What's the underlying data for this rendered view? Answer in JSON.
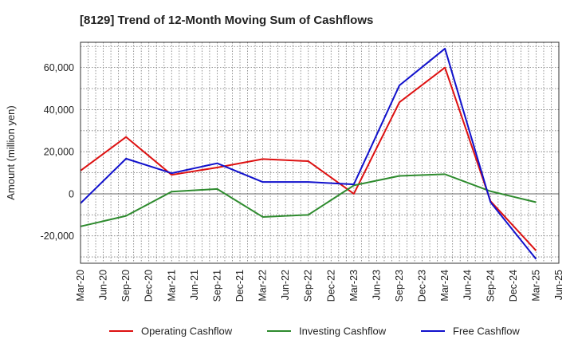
{
  "chart_data": {
    "type": "line",
    "title": "[8129]  Trend of 12-Month Moving Sum of Cashflows",
    "xlabel": "",
    "ylabel": "Amount (million yen)",
    "ylim": [
      -33000,
      72000
    ],
    "yticks": [
      60000,
      40000,
      20000,
      0,
      -20000
    ],
    "ytick_labels": [
      "60,000",
      "40,000",
      "20,000",
      "0",
      "-20,000"
    ],
    "x_tick_labels": [
      "Mar-20",
      "Jun-20",
      "Sep-20",
      "Dec-20",
      "Mar-21",
      "Jun-21",
      "Sep-21",
      "Dec-21",
      "Mar-22",
      "Jun-22",
      "Sep-22",
      "Dec-22",
      "Mar-23",
      "Jun-23",
      "Sep-23",
      "Dec-23",
      "Mar-24",
      "Jun-24",
      "Sep-24",
      "Dec-24",
      "Mar-25",
      "Jun-25"
    ],
    "grid": true,
    "legend_position": "bottom",
    "series": [
      {
        "name": "Operating Cashflow",
        "color": "#dd1111",
        "x": [
          "Mar-20",
          "Sep-20",
          "Mar-21",
          "Sep-21",
          "Mar-22",
          "Sep-22",
          "Mar-23",
          "Sep-23",
          "Mar-24",
          "Sep-24",
          "Mar-25"
        ],
        "values": [
          11000,
          27000,
          9000,
          12500,
          16500,
          15500,
          0,
          43500,
          60000,
          -3500,
          -27000
        ]
      },
      {
        "name": "Investing Cashflow",
        "color": "#2e8b2e",
        "x": [
          "Mar-20",
          "Sep-20",
          "Mar-21",
          "Sep-21",
          "Mar-22",
          "Sep-22",
          "Mar-23",
          "Sep-23",
          "Mar-24",
          "Sep-24",
          "Mar-25"
        ],
        "values": [
          -15500,
          -10500,
          1000,
          2300,
          -11000,
          -10000,
          4000,
          8500,
          9300,
          1200,
          -4000
        ]
      },
      {
        "name": "Free Cashflow",
        "color": "#1111cc",
        "x": [
          "Mar-20",
          "Sep-20",
          "Mar-21",
          "Sep-21",
          "Mar-22",
          "Sep-22",
          "Mar-23",
          "Sep-23",
          "Mar-24",
          "Sep-24",
          "Mar-25"
        ],
        "values": [
          -4500,
          16700,
          9800,
          14500,
          5600,
          5600,
          4500,
          51500,
          69000,
          -4000,
          -31000
        ]
      }
    ]
  }
}
